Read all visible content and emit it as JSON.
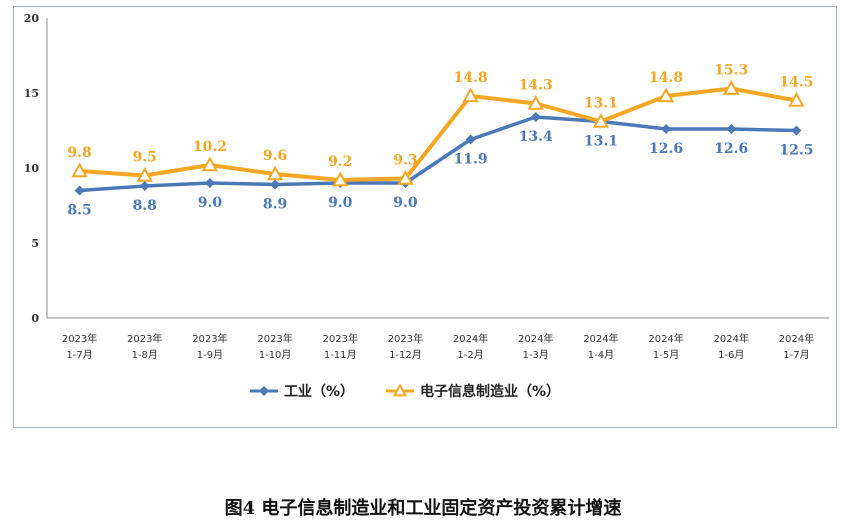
{
  "chart_data": {
    "type": "line",
    "title": "图4 电子信息制造业和工业固定资产投资累计增速",
    "categories": [
      [
        "2023年",
        "1-7月"
      ],
      [
        "2023年",
        "1-8月"
      ],
      [
        "2023年",
        "1-9月"
      ],
      [
        "2023年",
        "1-10月"
      ],
      [
        "2023年",
        "1-11月"
      ],
      [
        "2023年",
        "1-12月"
      ],
      [
        "2024年",
        "1-2月"
      ],
      [
        "2024年",
        "1-3月"
      ],
      [
        "2024年",
        "1-4月"
      ],
      [
        "2024年",
        "1-5月"
      ],
      [
        "2024年",
        "1-6月"
      ],
      [
        "2024年",
        "1-7月"
      ]
    ],
    "ylim": [
      0,
      20
    ],
    "yticks": [
      0,
      5,
      10,
      15,
      20
    ],
    "grid": false,
    "legend_position": "bottom-center",
    "series": [
      {
        "name": "工业（%）",
        "color": "#4a79b6",
        "marker": "diamond",
        "values": [
          8.5,
          8.8,
          9.0,
          8.9,
          9.0,
          9.0,
          11.9,
          13.4,
          13.1,
          12.6,
          12.6,
          12.5
        ],
        "labels": [
          "8.5",
          "8.8",
          "9.0",
          "8.9",
          "9.0",
          "9.0",
          "11.9",
          "13.4",
          "13.1",
          "12.6",
          "12.6",
          "12.5"
        ]
      },
      {
        "name": "电子信息制造业（%）",
        "color": "#f5a623",
        "marker": "triangle",
        "values": [
          9.8,
          9.5,
          10.2,
          9.6,
          9.2,
          9.3,
          14.8,
          14.3,
          13.1,
          14.8,
          15.3,
          14.5
        ],
        "labels": [
          "9.8",
          "9.5",
          "10.2",
          "9.6",
          "9.2",
          "9.3",
          "14.8",
          "14.3",
          "13.1",
          "14.8",
          "15.3",
          "14.5"
        ]
      }
    ]
  }
}
